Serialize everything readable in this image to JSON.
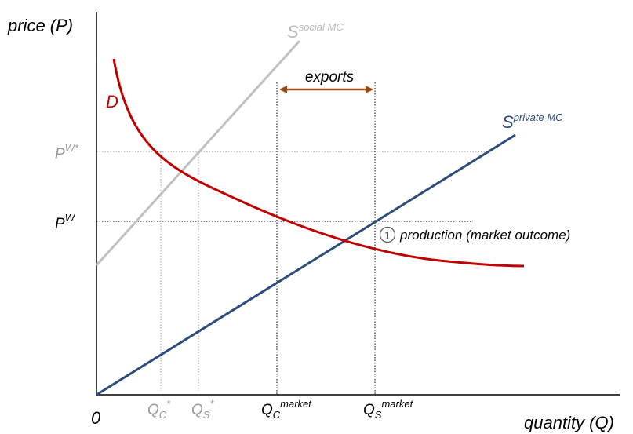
{
  "axes": {
    "y_label": "price (P)",
    "x_label": "quantity (Q)",
    "origin": "0"
  },
  "curves": {
    "social_supply": {
      "symbol": "S",
      "superscript": "social MC"
    },
    "private_supply": {
      "symbol": "S",
      "superscript": "private MC"
    },
    "demand": {
      "symbol": "D"
    }
  },
  "price_labels": [
    {
      "symbol": "P",
      "superscript": "W*"
    },
    {
      "symbol": "P",
      "superscript": "W"
    }
  ],
  "quantity_labels": [
    {
      "symbol": "Q",
      "subscript": "C",
      "superscript": "*"
    },
    {
      "symbol": "Q",
      "subscript": "S",
      "superscript": "*"
    },
    {
      "symbol": "Q",
      "subscript": "C",
      "superscript": "market"
    },
    {
      "symbol": "Q",
      "subscript": "S",
      "superscript": "market"
    }
  ],
  "exports": "exports",
  "annotation": {
    "marker": "1",
    "text": "production (market outcome)"
  }
}
